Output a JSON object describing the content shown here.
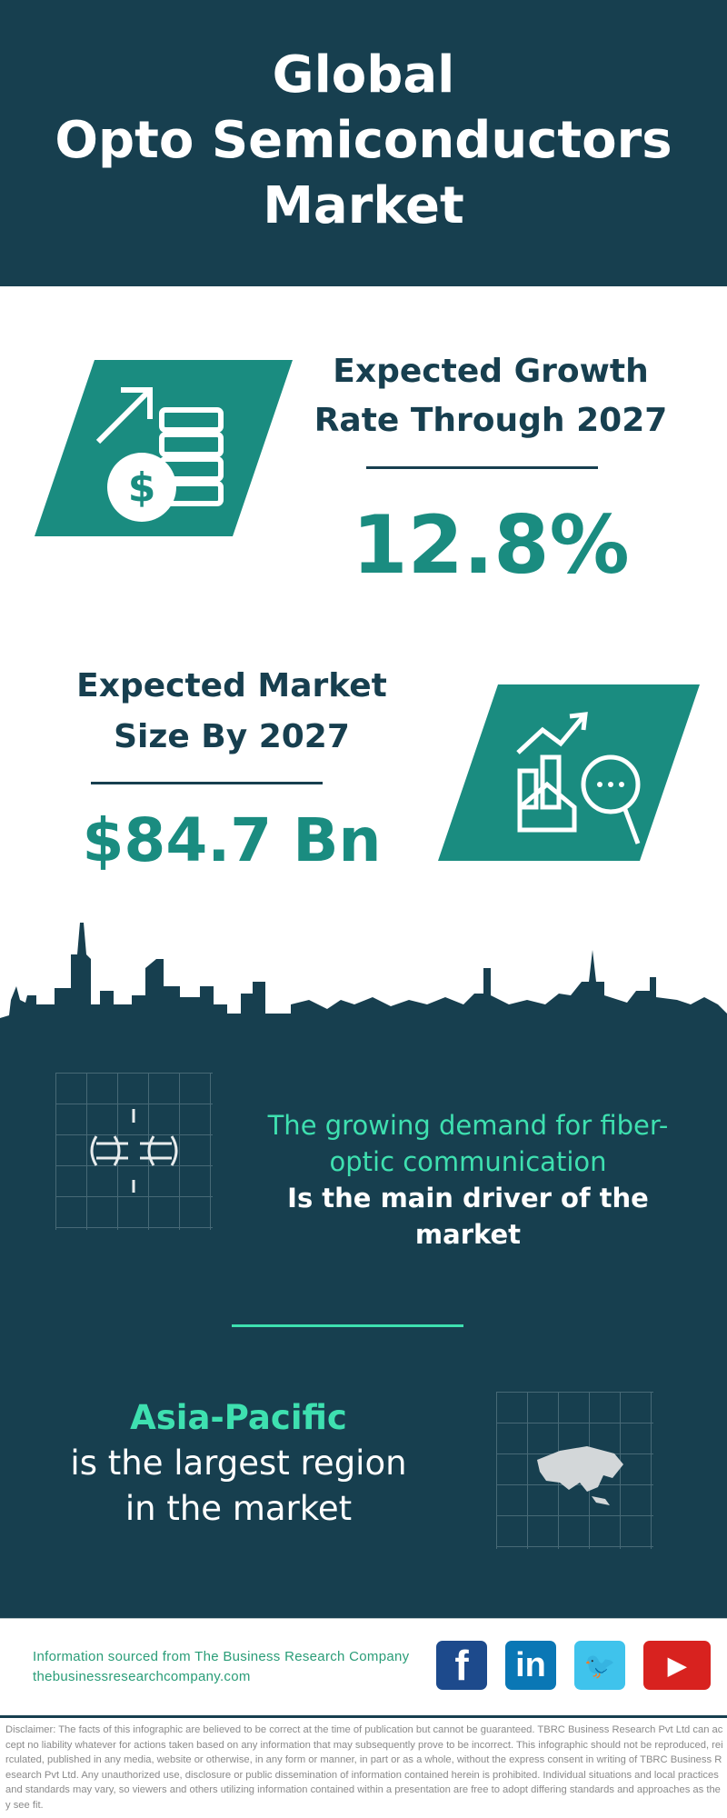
{
  "header": {
    "title_lines": [
      "Global",
      "Opto Semiconductors",
      "Market"
    ]
  },
  "growth": {
    "heading_lines": [
      "Expected Growth",
      "Rate Through 2027"
    ],
    "value": "12.8%",
    "icon": "growth-money-icon"
  },
  "market_size": {
    "heading_lines": [
      "Expected Market",
      "Size By 2027"
    ],
    "value": "$84.7 Bn",
    "icon": "market-analysis-icon"
  },
  "driver": {
    "highlight_lines": [
      "The growing demand for fiber-",
      "optic communication"
    ],
    "rest_lines": [
      "Is the main driver of the",
      "market"
    ],
    "icon": "fiber-optic-icon"
  },
  "region": {
    "name": "Asia-Pacific",
    "rest_lines": [
      "is the largest region",
      "in the market"
    ],
    "icon": "asia-map-icon"
  },
  "footer": {
    "source": "Information sourced from The Business Research Company",
    "website": "thebusinessresearchcompany.com",
    "social": [
      {
        "name": "facebook",
        "glyph": "f",
        "color": "#1d4a8c"
      },
      {
        "name": "linkedin",
        "glyph": "in",
        "color": "#0a77b5"
      },
      {
        "name": "twitter",
        "glyph": "🐦",
        "color": "#3fc3ec"
      },
      {
        "name": "youtube",
        "glyph": "▶",
        "color": "#d8221f"
      }
    ]
  },
  "colors": {
    "dark": "#173f4f",
    "teal": "#1a8c80",
    "green": "#3ee0b0"
  },
  "disclaimer": "Disclaimer: The facts of this infographic are believed to be correct at the time of publication but cannot be guaranteed. TBRC Business Research Pvt Ltd can accept no liability whatever for actions taken based on any information that may subsequently prove to be incorrect. This infographic should not be reproduced, reirculated, published in any media, website or otherwise, in any form or manner, in part or as a whole, without the express consent in writing of TBRC Business Research Pvt Ltd. Any unauthorized use, disclosure or public dissemination of information contained herein is prohibited. Individual situations and local practices and standards may vary, so viewers and others utilizing information contained within a presentation are free to adopt differing standards and approaches as they see fit."
}
